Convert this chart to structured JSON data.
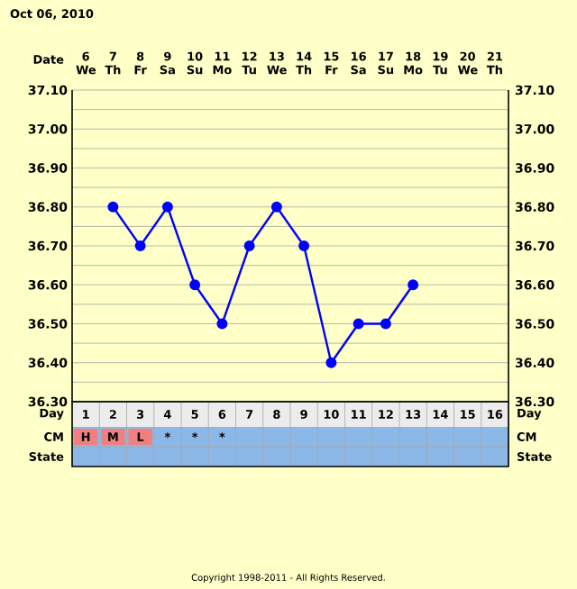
{
  "chart_data": {
    "type": "line",
    "title": "Oct 06, 2010",
    "categories": [
      "1",
      "2",
      "3",
      "4",
      "5",
      "6",
      "7",
      "8",
      "9",
      "10",
      "11",
      "12",
      "13",
      "14",
      "15",
      "16"
    ],
    "series": [
      {
        "color": "#0000ff",
        "values": [
          null,
          36.8,
          36.7,
          36.8,
          36.6,
          36.5,
          36.7,
          36.8,
          36.7,
          36.4,
          36.5,
          36.5,
          36.6,
          null,
          null,
          null
        ]
      }
    ],
    "ylim": [
      36.3,
      37.1
    ],
    "yticks": [
      {
        "value": 36.3,
        "label": "36.30"
      },
      {
        "value": 36.4,
        "label": "36.40"
      },
      {
        "value": 36.5,
        "label": "36.50"
      },
      {
        "value": 36.6,
        "label": "36.60"
      },
      {
        "value": 36.7,
        "label": "36.70"
      },
      {
        "value": 36.8,
        "label": "36.80"
      },
      {
        "value": 36.9,
        "label": "36.90"
      },
      {
        "value": 37.0,
        "label": "37.00"
      },
      {
        "value": 37.1,
        "label": "37.10"
      }
    ],
    "y2lim": [
      36.3,
      37.1
    ],
    "y2ticks": [
      {
        "value": 36.3,
        "label": "36.30"
      },
      {
        "value": 36.4,
        "label": "36.40"
      },
      {
        "value": 36.5,
        "label": "36.50"
      },
      {
        "value": 36.6,
        "label": "36.60"
      },
      {
        "value": 36.7,
        "label": "36.70"
      },
      {
        "value": 36.8,
        "label": "36.80"
      },
      {
        "value": 36.9,
        "label": "36.90"
      },
      {
        "value": 37.0,
        "label": "37.00"
      },
      {
        "value": 37.1,
        "label": "37.10"
      }
    ],
    "grid": true,
    "marker": "circle",
    "line_style": "solid",
    "annotations": [
      "Date",
      "Day",
      "CM",
      "State",
      "Day",
      "CM",
      "State",
      "Copyright 1998-2011 - All Rights Reserved.",
      "6 We",
      "7 Th",
      "8 Fr",
      "9 Sa",
      "10 Su",
      "11 Mo",
      "12 Tu",
      "13 We",
      "14 Th",
      "15 Fr",
      "16 Sa",
      "17 Su",
      "18 Mo",
      "19 Tu",
      "20 We",
      "21 Th",
      "H",
      "M",
      "L",
      "*",
      "*",
      "*"
    ]
  }
}
